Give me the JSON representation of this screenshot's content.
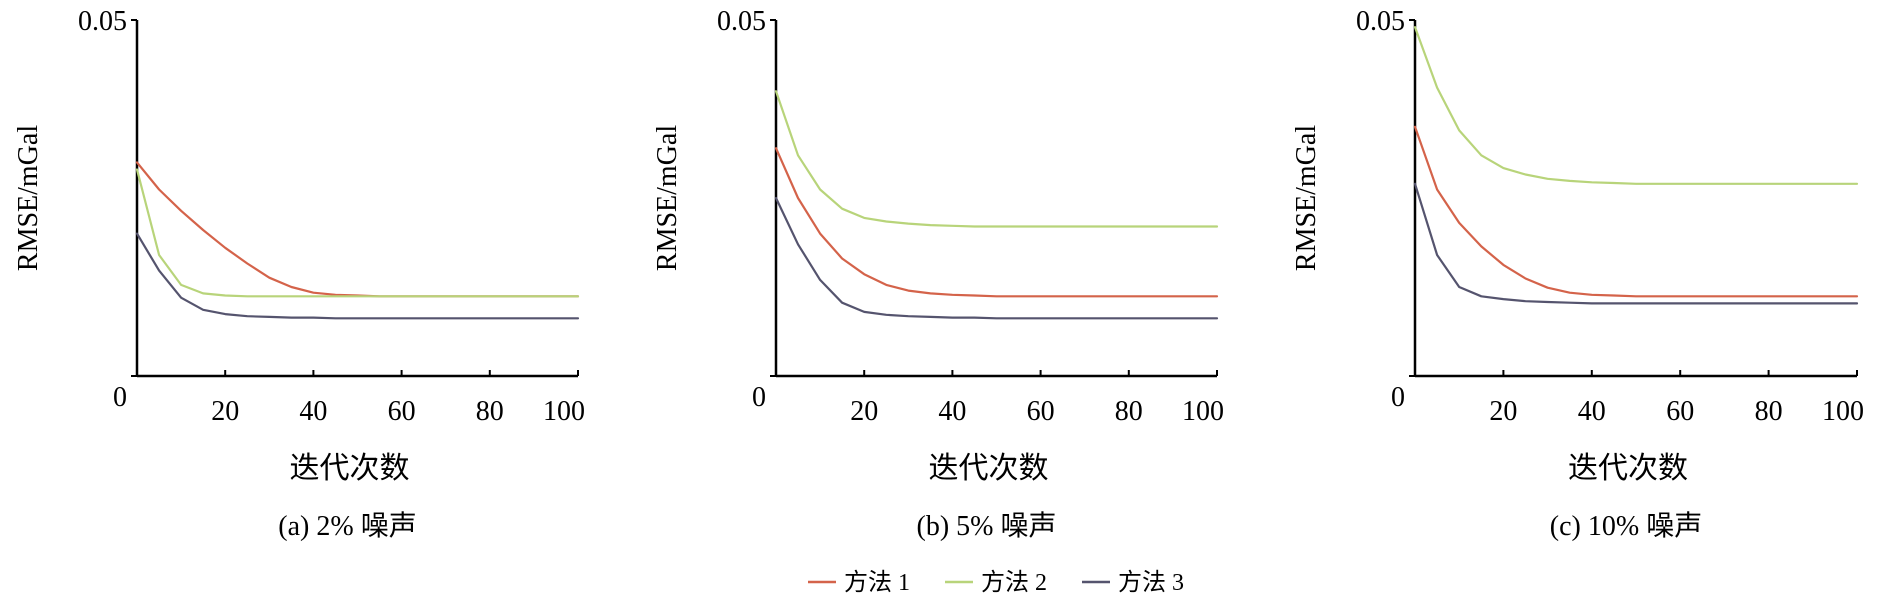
{
  "chart_data": [
    {
      "type": "line",
      "panel_label": "(a) 2% 噪声",
      "xlabel": "迭代次数",
      "ylabel": "RMSE/mGal",
      "xlim": [
        0,
        100
      ],
      "ylim": [
        0,
        0.05
      ],
      "x_ticks": [
        "20",
        "40",
        "60",
        "80",
        "100"
      ],
      "y_ticks": [
        "0",
        "0.05"
      ],
      "x": [
        0,
        5,
        10,
        15,
        20,
        25,
        30,
        35,
        40,
        45,
        50,
        55,
        60,
        70,
        80,
        90,
        100
      ],
      "series": [
        {
          "name": "方法 1",
          "color": "#d4634a",
          "values": [
            0.03,
            0.0262,
            0.0232,
            0.0205,
            0.018,
            0.0158,
            0.0138,
            0.0125,
            0.0117,
            0.0114,
            0.0113,
            0.0112,
            0.0112,
            0.0112,
            0.0112,
            0.0112,
            0.0112
          ]
        },
        {
          "name": "方法 2",
          "color": "#b8d47a",
          "values": [
            0.029,
            0.017,
            0.0128,
            0.0116,
            0.0113,
            0.0112,
            0.0112,
            0.0112,
            0.0112,
            0.0112,
            0.0112,
            0.0112,
            0.0112,
            0.0112,
            0.0112,
            0.0112,
            0.0112
          ]
        },
        {
          "name": "方法 3",
          "color": "#55546e",
          "values": [
            0.02,
            0.0148,
            0.011,
            0.0093,
            0.0087,
            0.0084,
            0.0083,
            0.0082,
            0.0082,
            0.0081,
            0.0081,
            0.0081,
            0.0081,
            0.0081,
            0.0081,
            0.0081,
            0.0081
          ]
        }
      ]
    },
    {
      "type": "line",
      "panel_label": "(b) 5% 噪声",
      "xlabel": "迭代次数",
      "ylabel": "RMSE/mGal",
      "xlim": [
        0,
        100
      ],
      "ylim": [
        0,
        0.05
      ],
      "x_ticks": [
        "20",
        "40",
        "60",
        "80",
        "100"
      ],
      "y_ticks": [
        "0",
        "0.05"
      ],
      "x": [
        0,
        5,
        10,
        15,
        20,
        25,
        30,
        35,
        40,
        45,
        50,
        55,
        60,
        70,
        80,
        90,
        100
      ],
      "series": [
        {
          "name": "方法 1",
          "color": "#d4634a",
          "values": [
            0.032,
            0.025,
            0.02,
            0.0165,
            0.0143,
            0.0128,
            0.012,
            0.0116,
            0.0114,
            0.0113,
            0.0112,
            0.0112,
            0.0112,
            0.0112,
            0.0112,
            0.0112,
            0.0112
          ]
        },
        {
          "name": "方法 2",
          "color": "#b8d47a",
          "values": [
            0.04,
            0.031,
            0.0262,
            0.0235,
            0.0222,
            0.0217,
            0.0214,
            0.0212,
            0.0211,
            0.021,
            0.021,
            0.021,
            0.021,
            0.021,
            0.021,
            0.021,
            0.021
          ]
        },
        {
          "name": "方法 3",
          "color": "#55546e",
          "values": [
            0.025,
            0.0185,
            0.0135,
            0.0103,
            0.009,
            0.0086,
            0.0084,
            0.0083,
            0.0082,
            0.0082,
            0.0081,
            0.0081,
            0.0081,
            0.0081,
            0.0081,
            0.0081,
            0.0081
          ]
        }
      ]
    },
    {
      "type": "line",
      "panel_label": "(c) 10% 噪声",
      "xlabel": "迭代次数",
      "ylabel": "RMSE/mGal",
      "xlim": [
        0,
        100
      ],
      "ylim": [
        0,
        0.05
      ],
      "x_ticks": [
        "20",
        "40",
        "60",
        "80",
        "100"
      ],
      "y_ticks": [
        "0",
        "0.05"
      ],
      "x": [
        0,
        5,
        10,
        15,
        20,
        25,
        30,
        35,
        40,
        45,
        50,
        55,
        60,
        70,
        80,
        90,
        100
      ],
      "series": [
        {
          "name": "方法 1",
          "color": "#d4634a",
          "values": [
            0.035,
            0.0262,
            0.0215,
            0.0182,
            0.0156,
            0.0137,
            0.0124,
            0.0117,
            0.0114,
            0.0113,
            0.0112,
            0.0112,
            0.0112,
            0.0112,
            0.0112,
            0.0112,
            0.0112
          ]
        },
        {
          "name": "方法 2",
          "color": "#b8d47a",
          "values": [
            0.049,
            0.0405,
            0.0345,
            0.031,
            0.0292,
            0.0283,
            0.0277,
            0.0274,
            0.0272,
            0.0271,
            0.027,
            0.027,
            0.027,
            0.027,
            0.027,
            0.027,
            0.027
          ]
        },
        {
          "name": "方法 3",
          "color": "#55546e",
          "values": [
            0.027,
            0.017,
            0.0125,
            0.0112,
            0.0108,
            0.0105,
            0.0104,
            0.0103,
            0.0102,
            0.0102,
            0.0102,
            0.0102,
            0.0102,
            0.0102,
            0.0102,
            0.0102,
            0.0102
          ]
        }
      ]
    }
  ],
  "legend": [
    {
      "label": "方法 1",
      "color": "#d4634a"
    },
    {
      "label": "方法 2",
      "color": "#b8d47a"
    },
    {
      "label": "方法 3",
      "color": "#55546e"
    }
  ]
}
